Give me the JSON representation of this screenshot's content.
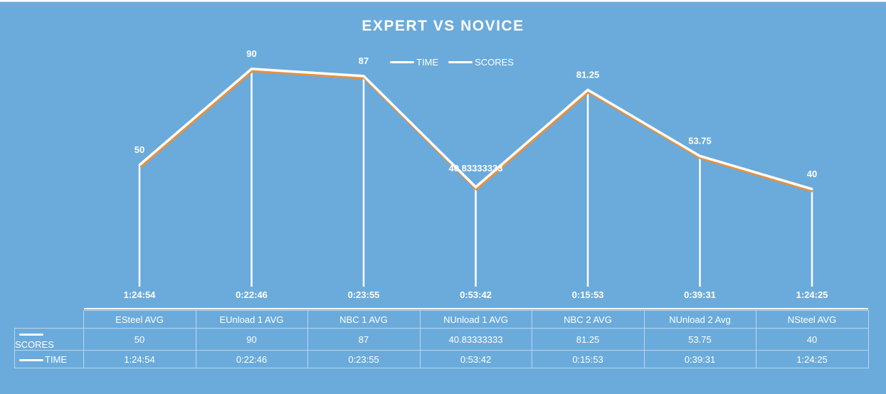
{
  "chart_data": {
    "type": "line",
    "title": "EXPERT VS NOVICE",
    "categories": [
      "ESteel AVG",
      "EUnload 1 AVG",
      "NBC 1 AVG",
      "NUnload 1 AVG",
      "NBC 2 AVG",
      "NUnload 2 Avg",
      "NSteel AVG"
    ],
    "series": [
      {
        "name": "SCORES",
        "values": [
          50,
          90,
          87,
          40.83333333,
          81.25,
          53.75,
          40
        ],
        "labels": [
          "50",
          "90",
          "87",
          "40.83333333",
          "81.25",
          "53.75",
          "40"
        ]
      },
      {
        "name": "TIME",
        "values": [
          "1:24:54",
          "0:22:46",
          "0:23:55",
          "0:53:42",
          "0:15:53",
          "0:39:31",
          "1:24:25"
        ],
        "minutes": [
          84.9,
          22.77,
          23.92,
          53.7,
          15.88,
          39.52,
          84.42
        ]
      }
    ],
    "legend": [
      "TIME",
      "SCORES"
    ],
    "ylim": [
      0,
      100
    ],
    "colors": {
      "background": "#6aabdb",
      "line": "#ffffff",
      "shadow": "#e8903c",
      "text": "#ffffff",
      "grid": "#b8d6ee"
    }
  }
}
